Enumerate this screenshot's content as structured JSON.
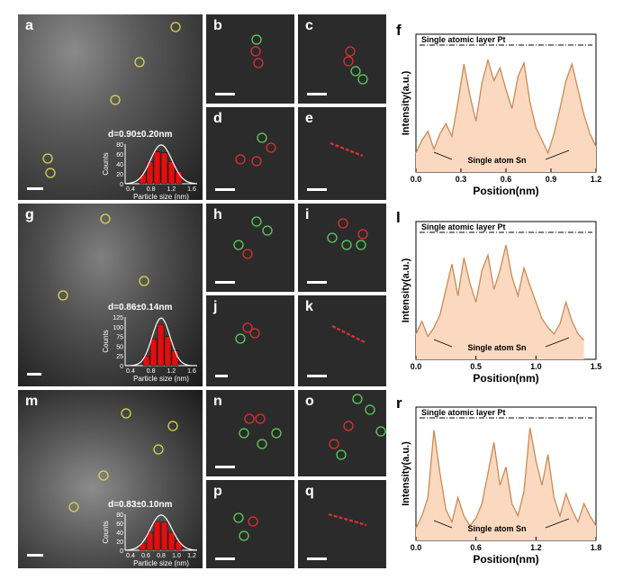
{
  "panels": {
    "a": {
      "letter": "a",
      "stat": "d=0.90±0.20nm",
      "hist_xlabel": "Particle size (nm)",
      "hist_ylabel": "Counts",
      "hist_xticks": [
        "0.4",
        "0.8",
        "1.2",
        "1.6"
      ],
      "hist_yticks": [
        "0",
        "20",
        "40",
        "60",
        "80"
      ]
    },
    "g": {
      "letter": "g",
      "stat": "d=0.86±0.14nm",
      "hist_xlabel": "Particle size (nm)",
      "hist_ylabel": "Counts",
      "hist_xticks": [
        "0.4",
        "0.8",
        "1.2",
        "1.6"
      ],
      "hist_yticks": [
        "0",
        "25",
        "50",
        "75",
        "100",
        "125"
      ]
    },
    "m": {
      "letter": "m",
      "stat": "d=0.83±0.10nm",
      "hist_xlabel": "Particle size (nm)",
      "hist_ylabel": "Counts",
      "hist_xticks": [
        "0.4",
        "0.6",
        "0.8",
        "1.0",
        "1.2"
      ],
      "hist_yticks": [
        "0",
        "20",
        "40",
        "60",
        "80"
      ]
    },
    "small": [
      "b",
      "c",
      "d",
      "e",
      "h",
      "i",
      "j",
      "k",
      "n",
      "o",
      "p",
      "q"
    ]
  },
  "chart_data": [
    {
      "type": "area",
      "letter": "f",
      "legend": "Single atomic layer Pt",
      "annotation": "Single atom Sn",
      "xlabel": "Position(nm)",
      "ylabel": "Intensity(a.u.)",
      "xlim": [
        0,
        1.2
      ],
      "xticks": [
        "0.0",
        "0.3",
        "0.6",
        "0.9",
        "1.2"
      ],
      "x": [
        0,
        0.04,
        0.08,
        0.12,
        0.16,
        0.2,
        0.24,
        0.28,
        0.32,
        0.36,
        0.4,
        0.44,
        0.48,
        0.52,
        0.56,
        0.6,
        0.64,
        0.68,
        0.72,
        0.76,
        0.8,
        0.84,
        0.88,
        0.92,
        0.96,
        1.0,
        1.04,
        1.08,
        1.12,
        1.16,
        1.2
      ],
      "y": [
        0.15,
        0.25,
        0.32,
        0.18,
        0.3,
        0.38,
        0.28,
        0.55,
        0.85,
        0.6,
        0.4,
        0.7,
        0.88,
        0.72,
        0.82,
        0.65,
        0.5,
        0.75,
        0.86,
        0.55,
        0.35,
        0.25,
        0.15,
        0.3,
        0.5,
        0.72,
        0.85,
        0.65,
        0.45,
        0.3,
        0.2
      ]
    },
    {
      "type": "area",
      "letter": "l",
      "legend": "Single atomic layer Pt",
      "annotation": "Single atom Sn",
      "xlabel": "Position(nm)",
      "ylabel": "Intensity(a.u.)",
      "xlim": [
        0,
        1.5
      ],
      "xticks": [
        "0.0",
        "0.5",
        "1.0",
        "1.5"
      ],
      "x": [
        0,
        0.05,
        0.1,
        0.15,
        0.2,
        0.25,
        0.3,
        0.35,
        0.4,
        0.45,
        0.5,
        0.55,
        0.6,
        0.65,
        0.7,
        0.75,
        0.8,
        0.85,
        0.9,
        0.95,
        1.0,
        1.05,
        1.1,
        1.15,
        1.2,
        1.25,
        1.3,
        1.35,
        1.4
      ],
      "y": [
        0.2,
        0.3,
        0.18,
        0.25,
        0.35,
        0.55,
        0.75,
        0.5,
        0.8,
        0.6,
        0.45,
        0.7,
        0.82,
        0.55,
        0.7,
        0.9,
        0.65,
        0.5,
        0.72,
        0.58,
        0.45,
        0.32,
        0.25,
        0.2,
        0.28,
        0.45,
        0.3,
        0.2,
        0.15
      ]
    },
    {
      "type": "area",
      "letter": "r",
      "legend": "Single atomic layer Pt",
      "annotation": "Single atom Sn",
      "xlabel": "Position(nm)",
      "ylabel": "Intensity(a.u.)",
      "xlim": [
        0,
        1.8
      ],
      "xticks": [
        "0.0",
        "0.6",
        "1.2",
        "1.8"
      ],
      "x": [
        0,
        0.06,
        0.12,
        0.18,
        0.24,
        0.3,
        0.36,
        0.42,
        0.48,
        0.54,
        0.6,
        0.66,
        0.72,
        0.78,
        0.84,
        0.9,
        0.96,
        1.02,
        1.08,
        1.14,
        1.2,
        1.26,
        1.32,
        1.38,
        1.44,
        1.5,
        1.56,
        1.62,
        1.68,
        1.74,
        1.8
      ],
      "y": [
        0.1,
        0.2,
        0.35,
        0.9,
        0.55,
        0.25,
        0.15,
        0.35,
        0.2,
        0.12,
        0.18,
        0.3,
        0.55,
        0.8,
        0.45,
        0.6,
        0.3,
        0.2,
        0.4,
        0.92,
        0.65,
        0.45,
        0.7,
        0.35,
        0.2,
        0.38,
        0.25,
        0.15,
        0.3,
        0.2,
        0.12
      ]
    }
  ],
  "colors": {
    "fill": "#fbd9c0",
    "line": "#c98a55",
    "hist": "#e01010",
    "fit": "#ffffff",
    "ring_red": "#e03030",
    "ring_green": "#5ad05a",
    "ring_yellow": "#d8d84a"
  }
}
